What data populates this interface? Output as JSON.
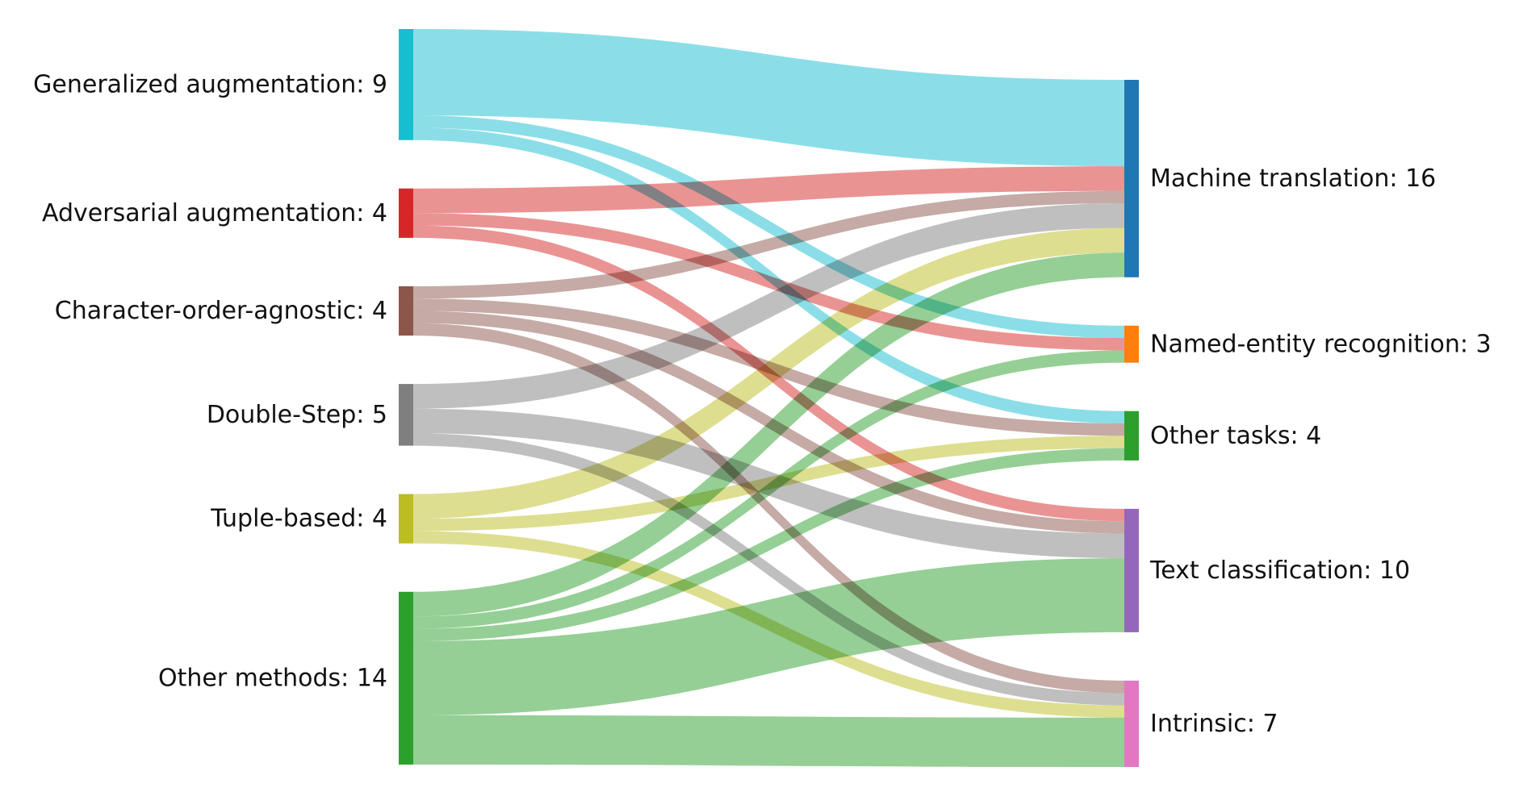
{
  "sankey": {
    "sources": [
      {
        "id": "ga",
        "label": "Generalized augmentation: 9",
        "color": "#17becf",
        "value": 9
      },
      {
        "id": "aa",
        "label": "Adversarial augmentation: 4",
        "color": "#d62728",
        "value": 4
      },
      {
        "id": "coa",
        "label": "Character-order-agnostic: 4",
        "color": "#8c564b",
        "value": 4
      },
      {
        "id": "ds",
        "label": "Double-Step: 5",
        "color": "#7f7f7f",
        "value": 5
      },
      {
        "id": "tb",
        "label": "Tuple-based: 4",
        "color": "#bcbd22",
        "value": 4
      },
      {
        "id": "om",
        "label": "Other methods: 14",
        "color": "#2ca02c",
        "value": 14
      }
    ],
    "targets": [
      {
        "id": "mt",
        "label": "Machine translation: 16",
        "color": "#1f77b4",
        "value": 16
      },
      {
        "id": "ner",
        "label": "Named-entity recognition: 3",
        "color": "#ff7f0e",
        "value": 3
      },
      {
        "id": "ot",
        "label": "Other tasks: 4",
        "color": "#2ca02c",
        "value": 4
      },
      {
        "id": "tc",
        "label": "Text classification: 10",
        "color": "#9467bd",
        "value": 10
      },
      {
        "id": "in",
        "label": "Intrinsic: 7",
        "color": "#e377c2",
        "value": 7
      }
    ],
    "links": [
      {
        "source": "ga",
        "target": "mt",
        "value": 7
      },
      {
        "source": "ga",
        "target": "ner",
        "value": 1
      },
      {
        "source": "ga",
        "target": "ot",
        "value": 1
      },
      {
        "source": "aa",
        "target": "mt",
        "value": 2
      },
      {
        "source": "aa",
        "target": "ner",
        "value": 1
      },
      {
        "source": "aa",
        "target": "tc",
        "value": 1
      },
      {
        "source": "coa",
        "target": "mt",
        "value": 1
      },
      {
        "source": "coa",
        "target": "ot",
        "value": 1
      },
      {
        "source": "coa",
        "target": "tc",
        "value": 1
      },
      {
        "source": "coa",
        "target": "in",
        "value": 1
      },
      {
        "source": "ds",
        "target": "mt",
        "value": 2
      },
      {
        "source": "ds",
        "target": "tc",
        "value": 2
      },
      {
        "source": "ds",
        "target": "in",
        "value": 1
      },
      {
        "source": "tb",
        "target": "mt",
        "value": 2
      },
      {
        "source": "tb",
        "target": "ot",
        "value": 1
      },
      {
        "source": "tb",
        "target": "in",
        "value": 1
      },
      {
        "source": "om",
        "target": "mt",
        "value": 2
      },
      {
        "source": "om",
        "target": "ner",
        "value": 1
      },
      {
        "source": "om",
        "target": "ot",
        "value": 1
      },
      {
        "source": "om",
        "target": "tc",
        "value": 6
      },
      {
        "source": "om",
        "target": "in",
        "value": 4
      }
    ]
  }
}
